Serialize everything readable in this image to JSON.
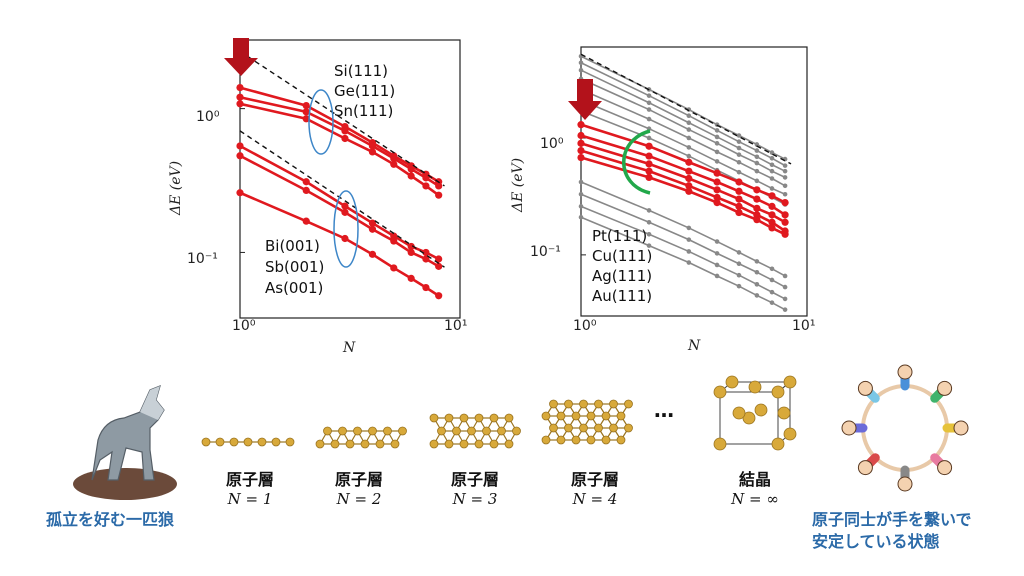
{
  "chart_data": [
    {
      "type": "line",
      "xscale": "log",
      "yscale": "log",
      "xlim": [
        1,
        10
      ],
      "ylim": [
        0.035,
        3.0
      ],
      "xlabel": "N",
      "ylabel": "ΔE (eV)",
      "xticks": [
        "10^0",
        "10^1"
      ],
      "yticks": [
        "10^-1",
        "10^0"
      ],
      "legend_groups": [
        {
          "entries": [
            "Si(111)",
            "Ge(111)",
            "Sn(111)"
          ]
        },
        {
          "entries": [
            "Bi(001)",
            "Sb(001)",
            "As(001)"
          ]
        }
      ],
      "series": [
        {
          "color": "#e0191f",
          "x": [
            1,
            2,
            3,
            4,
            5,
            6,
            7,
            8
          ],
          "y": [
            1.4,
            1.05,
            0.75,
            0.58,
            0.47,
            0.4,
            0.35,
            0.31
          ]
        },
        {
          "color": "#e0191f",
          "x": [
            1,
            2,
            3,
            4,
            5,
            6,
            7,
            8
          ],
          "y": [
            1.2,
            0.95,
            0.7,
            0.55,
            0.45,
            0.38,
            0.33,
            0.29
          ]
        },
        {
          "color": "#e0191f",
          "x": [
            1,
            2,
            3,
            4,
            5,
            6,
            7,
            8
          ],
          "y": [
            1.08,
            0.85,
            0.62,
            0.5,
            0.41,
            0.34,
            0.29,
            0.25
          ]
        },
        {
          "color": "#e0191f",
          "x": [
            1,
            2,
            3,
            4,
            5,
            6,
            7,
            8
          ],
          "y": [
            0.55,
            0.31,
            0.21,
            0.16,
            0.13,
            0.11,
            0.1,
            0.09
          ]
        },
        {
          "color": "#e0191f",
          "x": [
            1,
            2,
            3,
            4,
            5,
            6,
            7,
            8
          ],
          "y": [
            0.47,
            0.27,
            0.19,
            0.145,
            0.12,
            0.1,
            0.09,
            0.08
          ]
        },
        {
          "color": "#e0191f",
          "x": [
            1,
            2,
            3,
            4,
            5,
            6,
            7,
            8
          ],
          "y": [
            0.26,
            0.165,
            0.125,
            0.097,
            0.078,
            0.066,
            0.057,
            0.05
          ]
        }
      ],
      "reference_lines": [
        {
          "style": "dashed",
          "x": [
            1,
            8.5
          ],
          "y": [
            2.5,
            0.29
          ]
        },
        {
          "style": "dashed",
          "x": [
            1,
            8.5
          ],
          "y": [
            0.7,
            0.079
          ]
        }
      ]
    },
    {
      "type": "line",
      "xscale": "log",
      "yscale": "log",
      "xlim": [
        1,
        10
      ],
      "ylim": [
        0.03,
        6.0
      ],
      "xlabel": "N",
      "ylabel": "ΔE (eV)",
      "xticks": [
        "10^0",
        "10^1"
      ],
      "yticks": [
        "10^-1",
        "10^0"
      ],
      "legend_groups": [
        {
          "entries": [
            "Pt(111)",
            "Cu(111)",
            "Ag(111)",
            "Au(111)"
          ]
        }
      ],
      "series": [
        {
          "color": "#e0191f",
          "x": [
            1,
            2,
            3,
            4,
            5,
            6,
            7,
            8
          ],
          "y": [
            1.3,
            0.85,
            0.62,
            0.5,
            0.42,
            0.36,
            0.32,
            0.28
          ]
        },
        {
          "color": "#e0191f",
          "x": [
            1,
            2,
            3,
            4,
            5,
            6,
            7,
            8
          ],
          "y": [
            1.05,
            0.7,
            0.52,
            0.42,
            0.35,
            0.3,
            0.26,
            0.22
          ]
        },
        {
          "color": "#e0191f",
          "x": [
            1,
            2,
            3,
            4,
            5,
            6,
            7,
            8
          ],
          "y": [
            0.9,
            0.6,
            0.45,
            0.36,
            0.3,
            0.25,
            0.22,
            0.19
          ]
        },
        {
          "color": "#e0191f",
          "x": [
            1,
            2,
            3,
            4,
            5,
            6,
            7,
            8
          ],
          "y": [
            0.78,
            0.52,
            0.39,
            0.31,
            0.26,
            0.22,
            0.19,
            0.16
          ]
        },
        {
          "color": "#e0191f",
          "x": [
            1,
            2,
            3,
            4,
            5,
            6,
            7,
            8
          ],
          "y": [
            0.68,
            0.46,
            0.35,
            0.28,
            0.23,
            0.2,
            0.17,
            0.15
          ]
        },
        {
          "color": "#888888",
          "x": [
            1,
            2,
            3,
            4,
            5,
            6,
            7,
            8
          ],
          "y": [
            5.0,
            2.6,
            1.75,
            1.3,
            1.05,
            0.88,
            0.75,
            0.66
          ]
        },
        {
          "color": "#888888",
          "x": [
            1,
            2,
            3,
            4,
            5,
            6,
            7,
            8
          ],
          "y": [
            4.4,
            2.3,
            1.55,
            1.16,
            0.93,
            0.78,
            0.67,
            0.58
          ]
        },
        {
          "color": "#888888",
          "x": [
            1,
            2,
            3,
            4,
            5,
            6,
            7,
            8
          ],
          "y": [
            3.8,
            2.0,
            1.35,
            1.02,
            0.82,
            0.69,
            0.59,
            0.52
          ]
        },
        {
          "color": "#888888",
          "x": [
            1,
            2,
            3,
            4,
            5,
            6,
            7,
            8
          ],
          "y": [
            3.2,
            1.75,
            1.18,
            0.9,
            0.72,
            0.61,
            0.52,
            0.46
          ]
        },
        {
          "color": "#888888",
          "x": [
            1,
            2,
            3,
            4,
            5,
            6,
            7,
            8
          ],
          "y": [
            2.6,
            1.45,
            1.0,
            0.76,
            0.62,
            0.52,
            0.45,
            0.39
          ]
        },
        {
          "color": "#888888",
          "x": [
            1,
            2,
            3,
            4,
            5,
            6,
            7,
            8
          ],
          "y": [
            2.1,
            1.2,
            0.83,
            0.63,
            0.51,
            0.43,
            0.37,
            0.33
          ]
        },
        {
          "color": "#888888",
          "x": [
            1,
            2,
            3,
            4,
            5,
            6,
            7,
            8
          ],
          "y": [
            1.7,
            1.0,
            0.7,
            0.53,
            0.43,
            0.36,
            0.31,
            0.27
          ]
        },
        {
          "color": "#888888",
          "x": [
            1,
            2,
            3,
            4,
            5,
            6,
            7,
            8
          ],
          "y": [
            0.42,
            0.24,
            0.17,
            0.13,
            0.105,
            0.088,
            0.076,
            0.066
          ]
        },
        {
          "color": "#888888",
          "x": [
            1,
            2,
            3,
            4,
            5,
            6,
            7,
            8
          ],
          "y": [
            0.33,
            0.19,
            0.135,
            0.103,
            0.084,
            0.071,
            0.061,
            0.053
          ]
        },
        {
          "color": "#888888",
          "x": [
            1,
            2,
            3,
            4,
            5,
            6,
            7,
            8
          ],
          "y": [
            0.26,
            0.15,
            0.107,
            0.082,
            0.067,
            0.056,
            0.048,
            0.042
          ]
        },
        {
          "color": "#888888",
          "x": [
            1,
            2,
            3,
            4,
            5,
            6,
            7,
            8
          ],
          "y": [
            0.21,
            0.12,
            0.086,
            0.066,
            0.054,
            0.045,
            0.039,
            0.034
          ]
        }
      ],
      "reference_lines": [
        {
          "style": "dashed",
          "x": [
            1,
            8.5
          ],
          "y": [
            5.2,
            0.6
          ]
        }
      ]
    }
  ],
  "structures": [
    {
      "label": "原子層",
      "n_label": "N = 1"
    },
    {
      "label": "原子層",
      "n_label": "N = 2"
    },
    {
      "label": "原子層",
      "n_label": "N = 3"
    },
    {
      "label": "原子層",
      "n_label": "N = 4"
    },
    {
      "label": "結晶",
      "n_label": "N = ∞"
    }
  ],
  "ellipsis": "…",
  "captions": {
    "left": "孤立を好む一匹狼",
    "right_line1": "原子同士が手を繋いで",
    "right_line2": "安定している状態"
  },
  "colors": {
    "red_series": "#e0191f",
    "gray_series": "#888888",
    "arrow": "#b3121b",
    "atom": "#d8a93a",
    "caption": "#2b6aa8",
    "blue_bracket": "#3d86c8",
    "green_bracket": "#22a84a"
  },
  "icons": [
    "down-arrow-icon",
    "wolf-icon",
    "people-circle-icon",
    "crystal-cell-icon"
  ]
}
